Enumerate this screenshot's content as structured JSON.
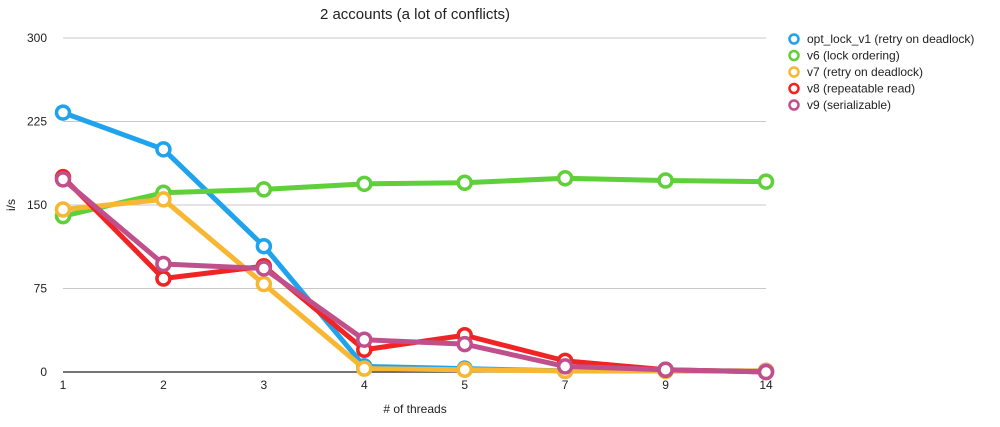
{
  "chart_data": {
    "type": "line",
    "title": "2 accounts (a lot of conflicts)",
    "xlabel": "# of threads",
    "ylabel": "i/s",
    "categories": [
      "1",
      "2",
      "3",
      "4",
      "5",
      "7",
      "9",
      "14"
    ],
    "ylim": [
      0,
      300
    ],
    "yticks": [
      "0",
      "75",
      "150",
      "225",
      "300"
    ],
    "grid": true,
    "legend_position": "top-right",
    "series": [
      {
        "name": "opt_lock_v1 (retry on deadlock)",
        "color": "#1fa3ec",
        "values": [
          233,
          200,
          113,
          5,
          3,
          1,
          1,
          1
        ]
      },
      {
        "name": "v6 (lock ordering)",
        "color": "#5fcf3a",
        "values": [
          140,
          161,
          164,
          169,
          170,
          174,
          172,
          171
        ]
      },
      {
        "name": "v7 (retry on deadlock)",
        "color": "#f7b733",
        "values": [
          146,
          155,
          79,
          3,
          2,
          1,
          1,
          1
        ]
      },
      {
        "name": "v8 (repeatable read)",
        "color": "#f02424",
        "values": [
          175,
          84,
          95,
          20,
          33,
          10,
          2,
          0
        ]
      },
      {
        "name": "v9 (serializable)",
        "color": "#c0508c",
        "values": [
          173,
          97,
          93,
          29,
          25,
          5,
          2,
          0
        ]
      }
    ]
  }
}
